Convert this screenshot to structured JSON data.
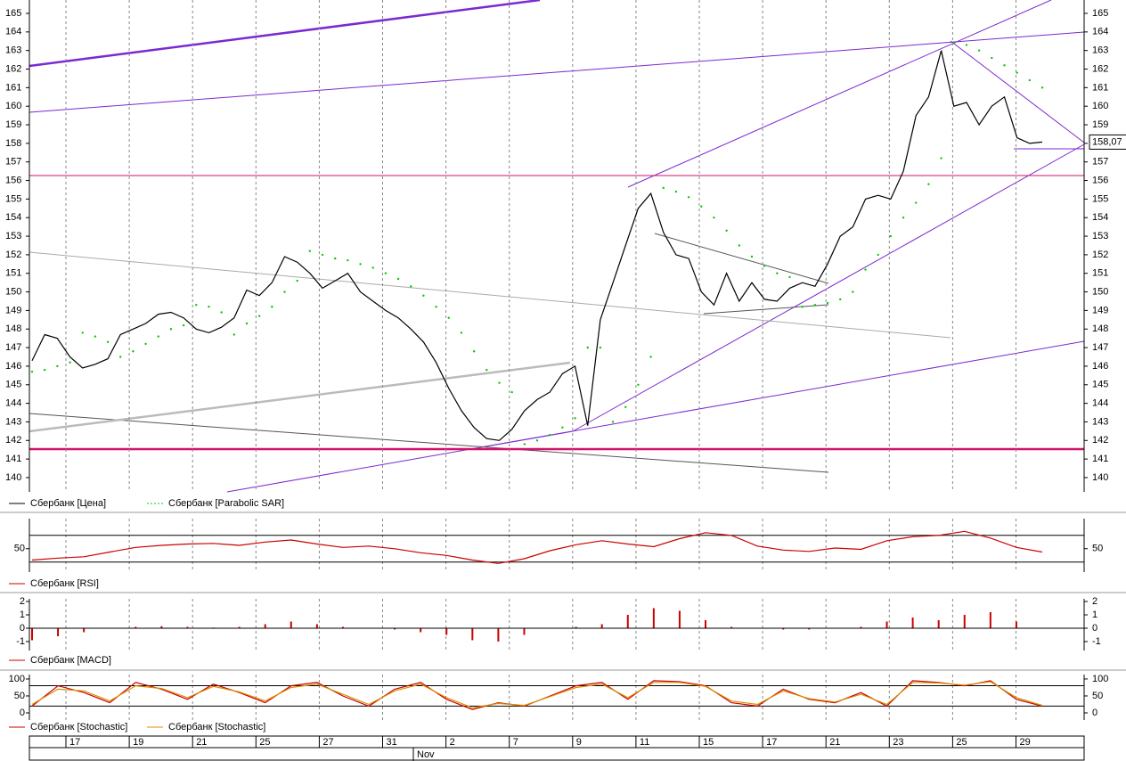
{
  "chart_data": [
    {
      "type": "line",
      "ylim": [
        139.23,
        165.72
      ],
      "yticks": [
        140,
        141,
        142,
        143,
        144,
        145,
        146,
        147,
        148,
        149,
        150,
        151,
        152,
        153,
        154,
        155,
        156,
        157,
        158,
        159,
        160,
        161,
        162,
        163,
        164,
        165
      ],
      "last_price": {
        "value": 158.07,
        "label": "158,07"
      },
      "series": [
        {
          "name": "Сбербанк [Цена]",
          "color": "#000000",
          "style": "line",
          "values": [
            146.3,
            147.7,
            147.5,
            146.5,
            145.9,
            146.1,
            146.4,
            147.7,
            148,
            148.3,
            148.8,
            148.9,
            148.6,
            148,
            147.8,
            148.1,
            148.6,
            150.1,
            149.8,
            150.5,
            151.9,
            151.6,
            151,
            150.2,
            150.6,
            151,
            150,
            149.5,
            149,
            148.6,
            148,
            147.3,
            146.2,
            144.8,
            143.6,
            142.7,
            142.1,
            142,
            142.6,
            143.6,
            144.2,
            144.6,
            145.6,
            146,
            142.8,
            148.5,
            150.5,
            152.5,
            154.5,
            155.3,
            153.2,
            152,
            151.8,
            150,
            149.3,
            151,
            149.5,
            150.5,
            149.6,
            149.5,
            150.2,
            150.5,
            150.3,
            151.5,
            153,
            153.5,
            155,
            155.2,
            155,
            156.5,
            159.5,
            160.5,
            163,
            160,
            160.2,
            159,
            160,
            160.5,
            158.3,
            158,
            158.07
          ]
        },
        {
          "name": "Сбербанк [Parabolic SAR]",
          "color": "#00cc00",
          "style": "dots",
          "values": [
            145.7,
            145.8,
            146,
            146.2,
            147.8,
            147.6,
            147.3,
            146.5,
            146.8,
            147.2,
            147.6,
            148,
            148.2,
            149.3,
            149.2,
            148.9,
            147.7,
            148.3,
            148.7,
            149.2,
            150,
            150.6,
            152.2,
            152,
            151.8,
            151.7,
            151.5,
            151.3,
            151,
            150.7,
            150.3,
            149.8,
            149.2,
            148.6,
            147.8,
            146.8,
            145.8,
            145.1,
            144.6,
            141.8,
            142,
            142.3,
            142.7,
            143.2,
            147,
            147,
            143,
            143.8,
            145,
            146.5,
            155.6,
            155.4,
            155.1,
            154.6,
            154,
            153.3,
            152.5,
            151.9,
            151.4,
            151,
            150.8,
            149.2,
            149.3,
            149.4,
            149.6,
            150,
            151.2,
            152,
            153,
            154,
            154.8,
            155.8,
            157.2,
            163.4,
            163.3,
            163,
            162.6,
            162.2,
            161.8,
            161.4,
            161
          ]
        }
      ]
    },
    {
      "type": "line",
      "ylim": [
        15,
        95
      ],
      "yticks": [
        50
      ],
      "hlines": [
        30,
        70
      ],
      "series": [
        {
          "name": "Сбербанк [RSI]",
          "color": "#cc0000",
          "style": "line",
          "values": [
            33,
            36,
            38,
            45,
            52,
            55,
            57,
            58,
            55,
            60,
            63,
            57,
            52,
            54,
            50,
            44,
            40,
            33,
            28,
            35,
            47,
            56,
            62,
            57,
            53,
            65,
            74,
            70,
            54,
            48,
            46,
            51,
            49,
            62,
            68,
            70,
            76,
            66,
            52,
            45
          ]
        }
      ]
    },
    {
      "type": "bar",
      "ylim": [
        -1.67,
        2.2
      ],
      "yticks": [
        -1,
        0,
        1,
        2
      ],
      "series": [
        {
          "name": "Сбербанк [MACD]",
          "color": "#cc0000",
          "style": "bars",
          "values": [
            -0.9,
            -0.6,
            -0.3,
            0,
            0.1,
            0.15,
            0.1,
            0.05,
            0.1,
            0.3,
            0.5,
            0.3,
            0.1,
            0,
            -0.1,
            -0.3,
            -0.5,
            -0.9,
            -1,
            -0.5,
            0,
            0.1,
            0.3,
            1,
            1.5,
            1.3,
            0.6,
            0.1,
            0,
            -0.1,
            -0.1,
            0,
            0.1,
            0.5,
            0.8,
            0.6,
            1,
            1.2,
            0.5,
            0
          ]
        }
      ]
    },
    {
      "type": "line",
      "ylim": [
        -21,
        113
      ],
      "yticks": [
        0,
        50,
        100
      ],
      "hlines": [
        20,
        80
      ],
      "series": [
        {
          "name": "Сбербанк [Stochastic]",
          "color": "#cc0000",
          "style": "line",
          "values": [
            20,
            80,
            60,
            30,
            90,
            70,
            40,
            85,
            60,
            30,
            80,
            90,
            50,
            20,
            70,
            90,
            40,
            10,
            30,
            20,
            50,
            80,
            90,
            40,
            95,
            92,
            80,
            30,
            20,
            70,
            40,
            30,
            60,
            20,
            95,
            90,
            80,
            95,
            40,
            20
          ]
        },
        {
          "name": "Сбербанк [Stochastic]",
          "color": "#d89000",
          "style": "line",
          "values": [
            25,
            70,
            65,
            35,
            80,
            72,
            45,
            78,
            62,
            35,
            75,
            85,
            55,
            25,
            65,
            85,
            45,
            15,
            28,
            22,
            48,
            75,
            85,
            45,
            90,
            90,
            78,
            35,
            25,
            65,
            42,
            32,
            55,
            25,
            90,
            88,
            82,
            92,
            45,
            22
          ]
        }
      ]
    }
  ],
  "x_axis": {
    "labels": [
      "17",
      "19",
      "21",
      "25",
      "27",
      "31",
      "2",
      "7",
      "9",
      "11",
      "15",
      "17",
      "21",
      "23",
      "25",
      "29"
    ],
    "month": "Nov"
  }
}
